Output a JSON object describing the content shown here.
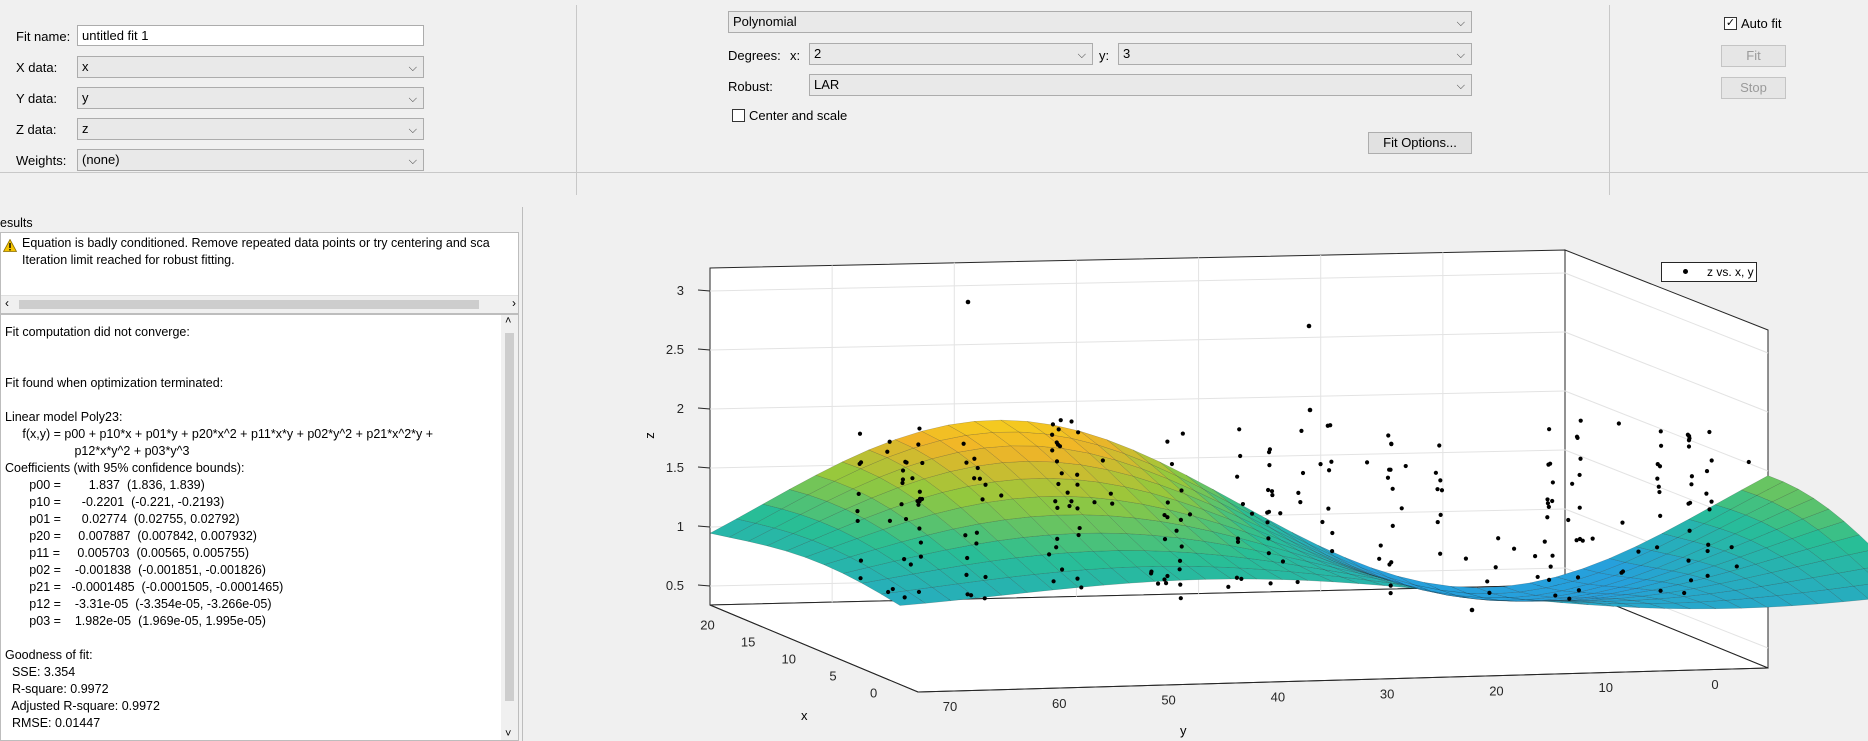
{
  "left_form": {
    "fit_name_label": "Fit name:",
    "fit_name_value": "untitled fit 1",
    "x_label": "X data:",
    "x_value": "x",
    "y_label": "Y data:",
    "y_value": "y",
    "z_label": "Z data:",
    "z_value": "z",
    "weights_label": "Weights:",
    "weights_value": "(none)"
  },
  "fit_type": {
    "model_value": "Polynomial",
    "degrees_label": "Degrees:",
    "x_label": "x:",
    "x_degree": "2",
    "y_label": "y:",
    "y_degree": "3",
    "robust_label": "Robust:",
    "robust_value": "LAR",
    "center_scale_label": "Center and scale",
    "center_scale_checked": false,
    "fit_options_label": "Fit Options..."
  },
  "controls": {
    "auto_fit_label": "Auto fit",
    "auto_fit_checked": true,
    "fit_label": "Fit",
    "stop_label": "Stop"
  },
  "results": {
    "title": "esults",
    "warning_1": "Equation is badly conditioned. Remove repeated data points or try centering and sca",
    "warning_2": "Iteration limit reached for robust fitting.",
    "lines": [
      "Fit computation did not converge:",
      "",
      "",
      "Fit found when optimization terminated:",
      "",
      "Linear model Poly23:",
      "     f(x,y) = p00 + p10*x + p01*y + p20*x^2 + p11*x*y + p02*y^2 + p21*x^2*y +",
      "                    p12*x*y^2 + p03*y^3",
      "Coefficients (with 95% confidence bounds):",
      "       p00 =        1.837  (1.836, 1.839)",
      "       p10 =      -0.2201  (-0.221, -0.2193)",
      "       p01 =      0.02774  (0.02755, 0.02792)",
      "       p20 =     0.007887  (0.007842, 0.007932)",
      "       p11 =     0.005703  (0.00565, 0.005755)",
      "       p02 =    -0.001838  (-0.001851, -0.001826)",
      "       p21 =   -0.0001485  (-0.0001505, -0.0001465)",
      "       p12 =    -3.31e-05  (-3.354e-05, -3.266e-05)",
      "       p03 =    1.982e-05  (1.969e-05, 1.995e-05)",
      "",
      "Goodness of fit:",
      "  SSE: 3.354",
      "  R-square: 0.9972",
      "  Adjusted R-square: 0.9972",
      "  RMSE: 0.01447"
    ]
  },
  "plot": {
    "legend_label": "z vs. x, y",
    "z_label": "z",
    "x_label": "x",
    "y_label": "y",
    "z_ticks": [
      "0.5",
      "1",
      "1.5",
      "2",
      "2.5",
      "3"
    ],
    "x_ticks": [
      "0",
      "5",
      "10",
      "15",
      "20"
    ],
    "y_ticks": [
      "70",
      "60",
      "50",
      "40",
      "30",
      "20",
      "10",
      "0"
    ]
  }
}
